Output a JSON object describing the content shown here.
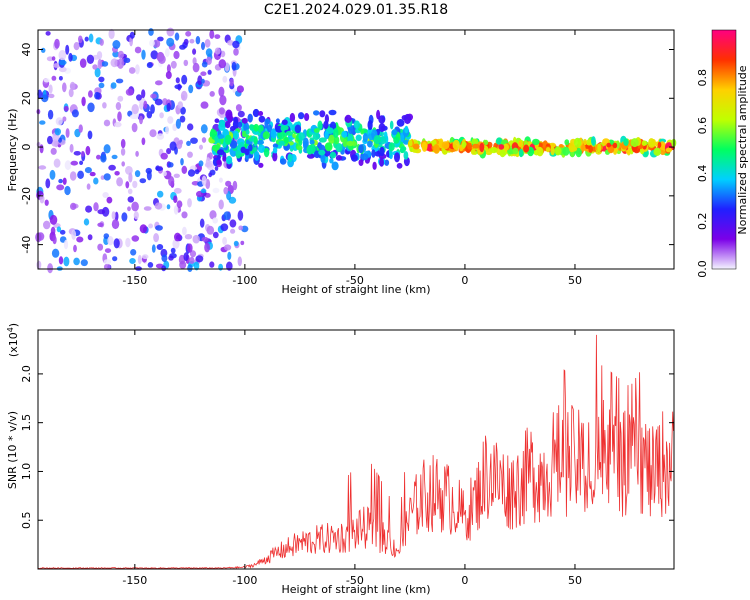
{
  "title": "C2E1.2024.029.01.35.R18",
  "chart_data": [
    {
      "type": "heatmap",
      "xlabel": "Height of straight line (km)",
      "ylabel": "Frequency (Hz)",
      "xlim": [
        -194,
        95
      ],
      "ylim": [
        -50,
        48
      ],
      "x_ticks": [
        -150,
        -100,
        -50,
        0,
        50
      ],
      "y_ticks": [
        -40,
        -20,
        0,
        20,
        40
      ],
      "colorbar": {
        "label": "Normalized spectral amplitude",
        "range": [
          0.0,
          1.0
        ],
        "ticks": [
          "0.0",
          "0.2",
          "0.4",
          "0.6",
          "0.8"
        ],
        "colors": [
          "#f4f4ff",
          "#7b00e8",
          "#2020ff",
          "#00d0ff",
          "#00ff60",
          "#c0ff00",
          "#ffd000",
          "#ff3000",
          "#ff0080"
        ]
      },
      "regions": [
        {
          "x_range": [
            -194,
            -100
          ],
          "description": "noise",
          "amplitude": 0.3
        },
        {
          "x_range": [
            -115,
            -25
          ],
          "center_freq": 3,
          "spread": 12,
          "amplitude": 0.5
        },
        {
          "x_range": [
            -25,
            95
          ],
          "center_freq": 0,
          "spread": 3,
          "amplitude": 0.85
        }
      ]
    },
    {
      "type": "line",
      "xlabel": "Height of straight line (km)",
      "ylabel": "SNR (10 * v/v)",
      "exponent_label": "(x10",
      "exponent_power": "4",
      "exponent_close": ")",
      "xlim": [
        -194,
        95
      ],
      "ylim": [
        0,
        2.45
      ],
      "x_ticks": [
        -150,
        -100,
        -50,
        0,
        50
      ],
      "y_ticks": [
        "0.5",
        "1.0",
        "1.5",
        "2.0"
      ],
      "line_color": "#ee3030",
      "series": [
        {
          "x": [
            -194,
            -150,
            -110,
            -100,
            -95,
            -85,
            -75,
            -65,
            -55,
            -48,
            -45,
            -40,
            -35,
            -30,
            -25,
            -20,
            -15,
            -10,
            -5,
            0,
            5,
            10,
            15,
            20,
            25,
            30,
            35,
            40,
            45,
            50,
            55,
            60,
            65,
            70,
            75,
            80,
            85,
            90,
            95
          ],
          "values": [
            0.01,
            0.01,
            0.01,
            0.02,
            0.05,
            0.18,
            0.28,
            0.32,
            0.35,
            0.42,
            0.45,
            0.38,
            0.3,
            0.2,
            0.55,
            0.78,
            0.82,
            0.8,
            0.72,
            0.55,
            0.75,
            1.05,
            0.95,
            0.85,
            0.92,
            1.05,
            1.0,
            1.15,
            1.2,
            1.15,
            1.1,
            1.25,
            1.2,
            1.15,
            1.1,
            1.2,
            1.0,
            1.15,
            1.15
          ]
        }
      ]
    }
  ]
}
